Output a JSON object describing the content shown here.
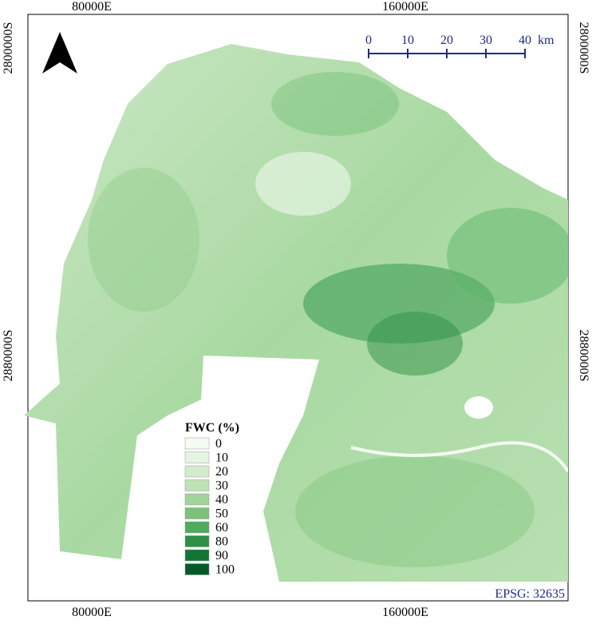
{
  "map": {
    "x_labels": [
      "80000E",
      "160000E"
    ],
    "y_labels": [
      "2800000S",
      "2880000S"
    ],
    "scale_bar": {
      "ticks": [
        "0",
        "10",
        "20",
        "30",
        "40"
      ],
      "unit": "km",
      "color": "#1f2a8a"
    },
    "legend": {
      "title": "FWC (%)",
      "items": [
        {
          "label": "0",
          "color": "#f4fbf2"
        },
        {
          "label": "10",
          "color": "#e6f4e2"
        },
        {
          "label": "20",
          "color": "#d3ecce"
        },
        {
          "label": "30",
          "color": "#bde2b6"
        },
        {
          "label": "40",
          "color": "#a0d499"
        },
        {
          "label": "50",
          "color": "#7cc27a"
        },
        {
          "label": "60",
          "color": "#4eab5c"
        },
        {
          "label": "80",
          "color": "#2e8f45"
        },
        {
          "label": "90",
          "color": "#157535"
        },
        {
          "label": "100",
          "color": "#045a26"
        }
      ]
    },
    "crs": "EPSG: 32635"
  }
}
